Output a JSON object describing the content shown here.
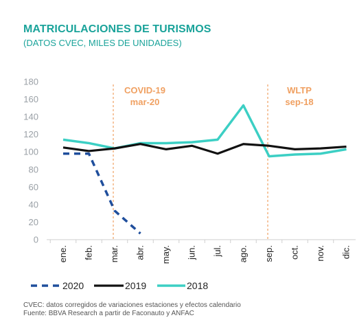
{
  "title": "MATRICULACIONES DE TURISMOS",
  "subtitle": "(DATOS CVEC, MILES DE UNIDADES)",
  "footnotes": [
    "CVEC: datos corregidos de variaciones estaciones y efectos calendario",
    "Fuente: BBVA Research a partir de Faconauto y ANFAC"
  ],
  "colors": {
    "title": "#1aa39a",
    "series_2020": "#1f4e9c",
    "series_2019": "#111111",
    "series_2018": "#3ccfc4",
    "annotation": "#f0a061",
    "axis_text": "#9aa0a6"
  },
  "chart_data": {
    "type": "line",
    "categories": [
      "ene.",
      "feb.",
      "mar.",
      "abr.",
      "may.",
      "jun.",
      "jul.",
      "ago.",
      "sep.",
      "oct.",
      "nov.",
      "dic."
    ],
    "ylim": [
      0,
      180
    ],
    "yticks": [
      "0",
      "20",
      "40",
      "60",
      "80",
      "100",
      "120",
      "140",
      "160",
      "180"
    ],
    "xlabel": "",
    "ylabel": "",
    "grid": false,
    "legend_position": "bottom",
    "series": [
      {
        "name": "2020",
        "style": "dashed",
        "values": [
          98,
          98,
          33,
          7,
          null,
          null,
          null,
          null,
          null,
          null,
          null,
          null
        ]
      },
      {
        "name": "2019",
        "style": "solid",
        "values": [
          105,
          101,
          104,
          109,
          103,
          107,
          98,
          109,
          107,
          103,
          104,
          106
        ]
      },
      {
        "name": "2018",
        "style": "solid",
        "values": [
          114,
          110,
          104,
          110,
          110,
          111,
          114,
          153,
          95,
          97,
          98,
          103
        ]
      }
    ],
    "annotations": [
      {
        "category_index": 2,
        "lines": [
          "COVID-19",
          "mar-20"
        ]
      },
      {
        "category_index": 8,
        "lines": [
          "WLTP",
          "sep-18"
        ]
      }
    ]
  }
}
